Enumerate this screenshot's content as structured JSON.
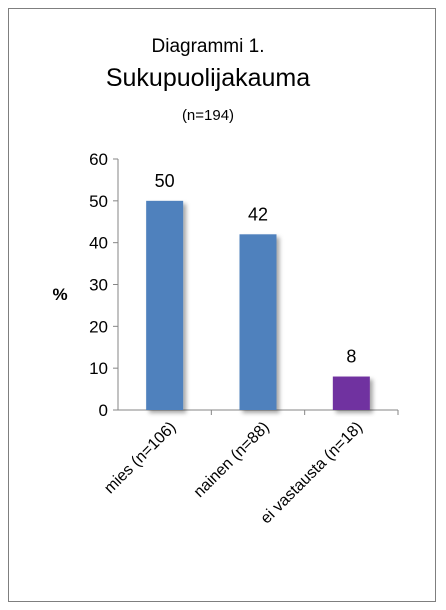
{
  "chart_data": {
    "type": "bar",
    "title_line1": "Diagrammi 1.",
    "title": "Sukupuolijakauma",
    "subtitle": "(n=194)",
    "ylabel": "%",
    "xlabel": "",
    "categories": [
      "mies (n=106)",
      "nainen (n=88)",
      "ei vastausta (n=18)"
    ],
    "values": [
      50,
      42,
      8
    ],
    "data_labels": [
      "50",
      "42",
      "8"
    ],
    "yticks": [
      "0",
      "10",
      "20",
      "30",
      "40",
      "50",
      "60"
    ],
    "ylim": [
      0,
      60
    ],
    "bar_colors": [
      "#4f81bd",
      "#4f81bd",
      "#7030a0"
    ],
    "grid": false,
    "legend": "none"
  }
}
